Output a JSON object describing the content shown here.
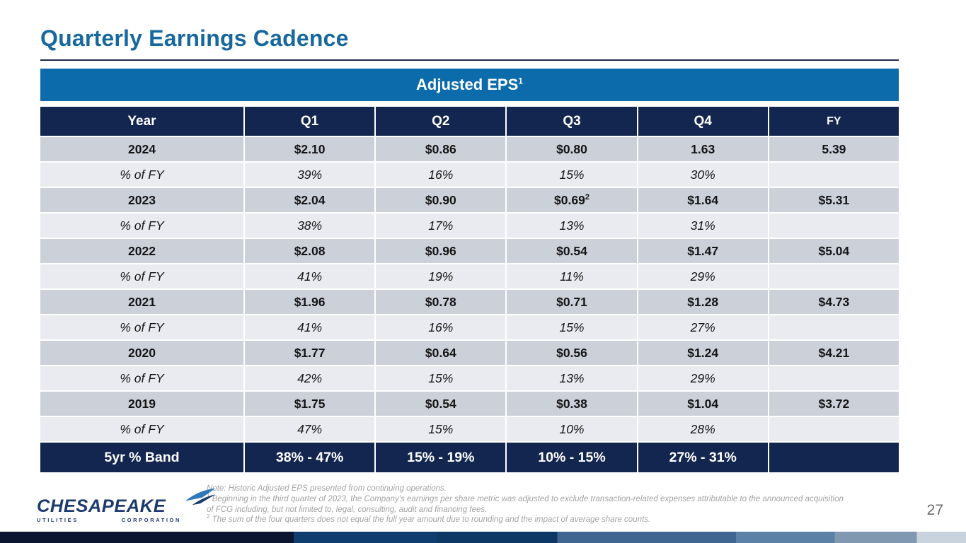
{
  "slide": {
    "title": "Quarterly Earnings Cadence",
    "page_number": "27"
  },
  "banner": {
    "title": "Adjusted EPS",
    "superscript": "1"
  },
  "table": {
    "columns": [
      "Year",
      "Q1",
      "Q2",
      "Q3",
      "Q4",
      "FY"
    ],
    "rows": [
      {
        "type": "year",
        "cells": [
          "2024",
          "$2.10",
          "$0.86",
          "$0.80",
          "1.63",
          "5.39"
        ]
      },
      {
        "type": "pct",
        "cells": [
          "% of FY",
          "39%",
          "16%",
          "15%",
          "30%",
          ""
        ]
      },
      {
        "type": "year",
        "cells": [
          "2023",
          "$2.04",
          "$0.90",
          "$0.69^2",
          "$1.64",
          "$5.31"
        ]
      },
      {
        "type": "pct",
        "cells": [
          "% of FY",
          "38%",
          "17%",
          "13%",
          "31%",
          ""
        ]
      },
      {
        "type": "year",
        "cells": [
          "2022",
          "$2.08",
          "$0.96",
          "$0.54",
          "$1.47",
          "$5.04"
        ]
      },
      {
        "type": "pct",
        "cells": [
          "% of FY",
          "41%",
          "19%",
          "11%",
          "29%",
          ""
        ]
      },
      {
        "type": "year",
        "cells": [
          "2021",
          "$1.96",
          "$0.78",
          "$0.71",
          "$1.28",
          "$4.73"
        ]
      },
      {
        "type": "pct",
        "cells": [
          "% of FY",
          "41%",
          "16%",
          "15%",
          "27%",
          ""
        ]
      },
      {
        "type": "year",
        "cells": [
          "2020",
          "$1.77",
          "$0.64",
          "$0.56",
          "$1.24",
          "$4.21"
        ]
      },
      {
        "type": "pct",
        "cells": [
          "% of FY",
          "42%",
          "15%",
          "13%",
          "29%",
          ""
        ]
      },
      {
        "type": "year",
        "cells": [
          "2019",
          "$1.75",
          "$0.54",
          "$0.38",
          "$1.04",
          "$3.72"
        ]
      },
      {
        "type": "pct",
        "cells": [
          "% of FY",
          "47%",
          "15%",
          "10%",
          "28%",
          ""
        ]
      },
      {
        "type": "band",
        "cells": [
          "5yr % Band",
          "38% - 47%",
          "15% - 19%",
          "10% - 15%",
          "27% - 31%",
          ""
        ]
      }
    ]
  },
  "footnotes": [
    {
      "sup": "",
      "text": "Note: Historic Adjusted EPS presented from continuing operations."
    },
    {
      "sup": "1",
      "text": "Beginning in the third quarter of 2023, the Company’s earnings per share metric was adjusted to exclude transaction-related expenses attributable to the announced acquisition of FCG including, but not limited to, legal, consulting, audit and financing fees."
    },
    {
      "sup": "2",
      "text": "The sum of the four quarters does not equal the full year amount due to rounding and the impact of average share counts."
    }
  ],
  "logo": {
    "name": "CHESAPEAKE",
    "sub_left": "UTILITIES",
    "sub_right": "CORPORATION"
  },
  "colors": {
    "title_blue": "#17689e",
    "banner_blue": "#0c6bab",
    "header_navy": "#13264f",
    "row_year_gray": "#ccd0d9",
    "row_pct_gray": "#e9ebf0",
    "logo_navy": "#1c3a6e",
    "logo_swoosh_blue": "#2e79bc",
    "footnote_gray": "#a3a3a3"
  }
}
